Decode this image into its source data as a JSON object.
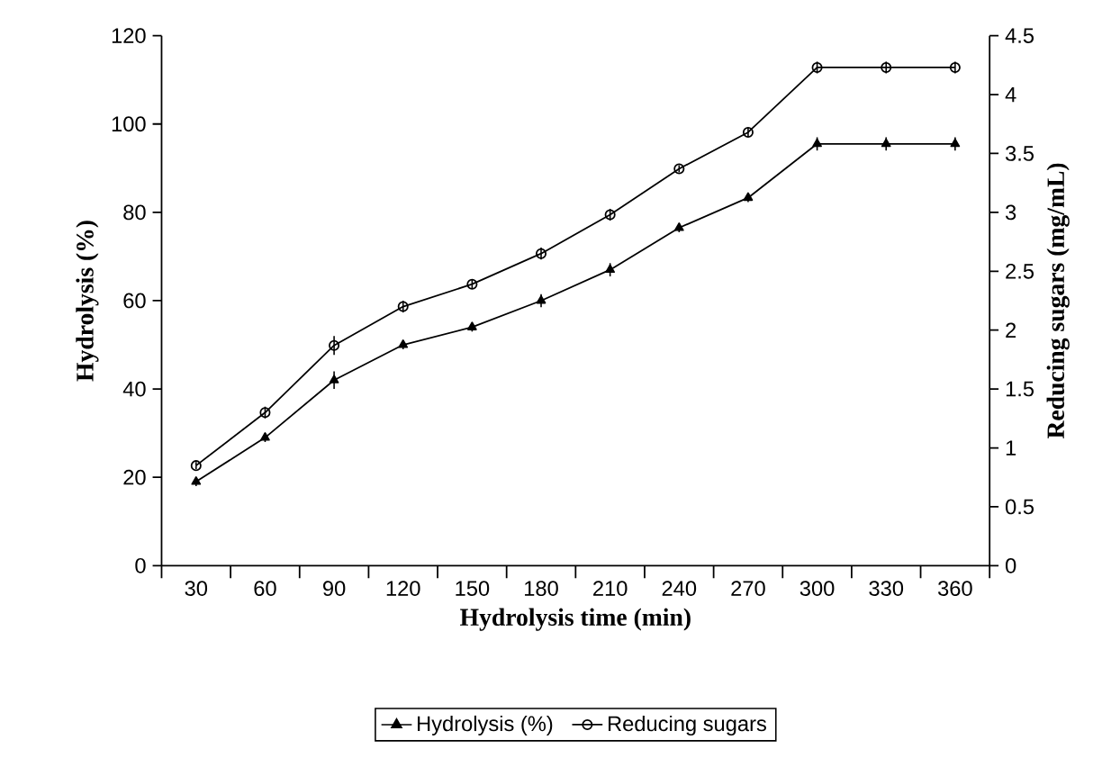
{
  "chart_data": {
    "type": "line",
    "xlabel": "Hydrolysis time (min)",
    "ylabel": "Hydrolysis (%)",
    "y2label": "Reducing sugars (mg/mL)",
    "categories": [
      "30",
      "60",
      "90",
      "120",
      "150",
      "180",
      "210",
      "240",
      "270",
      "300",
      "330",
      "360"
    ],
    "series": [
      {
        "name": "Hydrolysis (%)",
        "color": "#000000",
        "marker": "triangle",
        "values": [
          19,
          29,
          42,
          50,
          54,
          60,
          67,
          76.5,
          83.3,
          95.5,
          95.5,
          95.5
        ],
        "errors": [
          1,
          1,
          2,
          1,
          1,
          1.5,
          1.5,
          1,
          1,
          1.5,
          1.5,
          1.5
        ]
      },
      {
        "name": "Reducing sugars",
        "color": "#000000",
        "marker": "circle",
        "axis": "y2",
        "values": [
          0.85,
          1.3,
          1.87,
          2.2,
          2.39,
          2.65,
          2.98,
          3.37,
          3.68,
          4.23,
          4.23,
          4.23
        ],
        "errors": [
          0.03,
          0.05,
          0.08,
          0.05,
          0.04,
          0.05,
          0.05,
          0.03,
          0.04,
          0.05,
          0.05,
          0.05
        ]
      }
    ],
    "ylim": [
      0,
      120
    ],
    "yticks": [
      0,
      20,
      40,
      60,
      80,
      100,
      120
    ],
    "y2lim": [
      0,
      4.5
    ],
    "y2ticks": [
      0,
      0.5,
      1,
      1.5,
      2,
      2.5,
      3,
      3.5,
      4,
      4.5
    ],
    "legend": "bottom",
    "grid": false,
    "line_style": "solid"
  }
}
